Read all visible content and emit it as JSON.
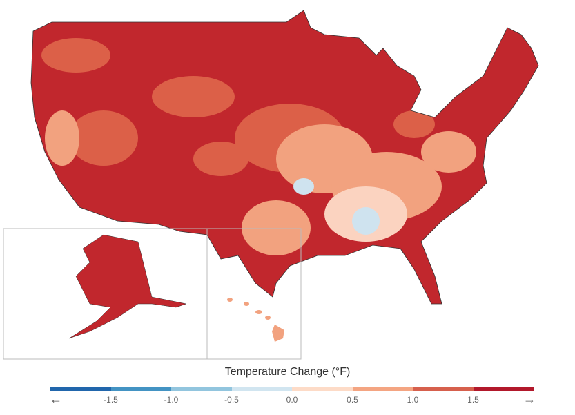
{
  "legend": {
    "title": "Temperature Change (°F)",
    "ticks": [
      "-1.5",
      "-1.0",
      "-0.5",
      "0.0",
      "0.5",
      "1.0",
      "1.5"
    ],
    "left_arrow": "←",
    "right_arrow": "→",
    "colors": [
      "#2166ac",
      "#4393c3",
      "#92c5de",
      "#d1e5f0",
      "#fddbc7",
      "#f4a582",
      "#d6604d",
      "#b2182b"
    ]
  },
  "colors": {
    "base": "#c1272d",
    "mid": "#dc6048",
    "light": "#f2a27f",
    "pale": "#fbd3c0",
    "cool": "#cfe3ef",
    "border": "#bbbbbb"
  }
}
